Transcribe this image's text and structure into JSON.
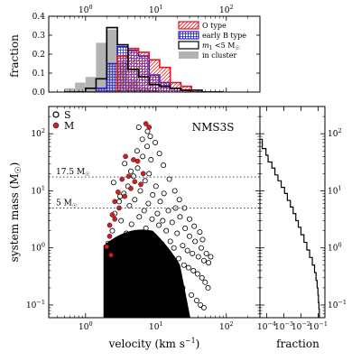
{
  "chart_data": [
    {
      "id": "hist",
      "type": "bar",
      "description_axis": "step histograms of velocity per population",
      "ylabel": "fraction",
      "xlabel_top": "",
      "xscale": "log",
      "xlim": [
        0.3,
        300
      ],
      "ylim": [
        0,
        0.4
      ],
      "x_ticks": [
        {
          "v": 1,
          "label": "10^0"
        },
        {
          "v": 10,
          "label": "10^1"
        },
        {
          "v": 100,
          "label": "10^2"
        }
      ],
      "y_ticks": [
        {
          "v": 0.0,
          "label": "0.0"
        },
        {
          "v": 0.1,
          "label": "0.1"
        },
        {
          "v": 0.2,
          "label": "0.2"
        },
        {
          "v": 0.3,
          "label": "0.3"
        },
        {
          "v": 0.4,
          "label": "0.4"
        }
      ],
      "bin_edges": [
        0.5,
        0.71,
        1.0,
        1.41,
        2.0,
        2.83,
        4.0,
        5.66,
        8.0,
        11.3,
        16.0,
        22.6,
        32.0,
        45.3,
        64.0,
        90.5
      ],
      "series": [
        {
          "name": "in cluster",
          "style": "filled",
          "color": "#b3b3b3",
          "values": [
            0.02,
            0.05,
            0.08,
            0.26,
            0.33,
            0.16,
            0.06,
            0.02,
            0.01,
            0.0,
            0.0,
            0.0,
            0.0,
            0.0,
            0.0
          ]
        },
        {
          "name": "early B type",
          "style": "hatch-cross",
          "color": "#1f1fd6",
          "values": [
            0.0,
            0.0,
            0.0,
            0.02,
            0.15,
            0.24,
            0.22,
            0.19,
            0.09,
            0.05,
            0.02,
            0.01,
            0.0,
            0.0,
            0.0
          ]
        },
        {
          "name": "O type",
          "style": "hatch-diag",
          "color": "#e8141b",
          "values": [
            0.0,
            0.0,
            0.0,
            0.0,
            0.0,
            0.19,
            0.23,
            0.21,
            0.17,
            0.13,
            0.05,
            0.03,
            0.0,
            0.0,
            0.0
          ]
        },
        {
          "name": "m1 <5 M☉",
          "style": "step",
          "color": "#000000",
          "values": [
            0.0,
            0.0,
            0.02,
            0.07,
            0.34,
            0.25,
            0.12,
            0.08,
            0.04,
            0.03,
            0.02,
            0.01,
            0.01,
            0.0,
            0.0
          ]
        }
      ],
      "legend": [
        {
          "label": "O type",
          "style": "hatch-diag",
          "color": "#e8141b"
        },
        {
          "label": "early B type",
          "style": "hatch-cross",
          "color": "#1f1fd6"
        },
        {
          "label": "m",
          "sub": "1",
          "rest": " <5 M",
          "sun": "☉",
          "style": "open",
          "color": "#000000"
        },
        {
          "label": "in cluster",
          "style": "filled",
          "color": "#b3b3b3"
        }
      ],
      "legend_position": "top-right"
    },
    {
      "id": "scatter",
      "type": "scatter",
      "xlabel": "velocity (km s",
      "xlabel_sup": "−1",
      "xlabel_close": ")",
      "ylabel": "system mass (M",
      "ylabel_sun": "☉",
      "ylabel_close": ")",
      "xscale": "log",
      "yscale": "log",
      "xlim": [
        0.3,
        300
      ],
      "ylim": [
        0.06,
        300
      ],
      "x_ticks": [
        {
          "v": 1,
          "label": "10^0"
        },
        {
          "v": 10,
          "label": "10^1"
        },
        {
          "v": 100,
          "label": "10^2"
        }
      ],
      "y_ticks": [
        {
          "v": 0.1,
          "label": "10^-1"
        },
        {
          "v": 1,
          "label": "10^0"
        },
        {
          "v": 10,
          "label": "10^1"
        },
        {
          "v": 100,
          "label": "10^2"
        }
      ],
      "panel_label": "NMS3S",
      "legend": [
        {
          "label": "S",
          "marker": "open-circle",
          "color": "#000000"
        },
        {
          "label": "M",
          "marker": "filled-circle",
          "color": "#d11f1f"
        }
      ],
      "hlines": [
        {
          "y": 17.5,
          "label": "17.5 M",
          "sun": "☉"
        },
        {
          "y": 5,
          "label": "5 M",
          "sun": "☉"
        }
      ],
      "dense_region": {
        "x_range": [
          1.8,
          22
        ],
        "y_range": [
          0.06,
          0.5
        ],
        "series": "S"
      },
      "series": [
        {
          "name": "S",
          "marker": "open-circle",
          "color": "#000000",
          "points": [
            [
              2.1,
              1.2
            ],
            [
              2.4,
              2.0
            ],
            [
              2.6,
              4.0
            ],
            [
              2.2,
              0.8
            ],
            [
              3.0,
              6.5
            ],
            [
              3.2,
              3.0
            ],
            [
              3.5,
              9.0
            ],
            [
              3.8,
              1.8
            ],
            [
              4.0,
              12.0
            ],
            [
              4.2,
              5.5
            ],
            [
              4.5,
              2.6
            ],
            [
              4.8,
              18.0
            ],
            [
              5.0,
              7.0
            ],
            [
              5.2,
              1.4
            ],
            [
              5.5,
              25.0
            ],
            [
              5.8,
              3.5
            ],
            [
              6.0,
              10.0
            ],
            [
              6.2,
              0.9
            ],
            [
              6.5,
              40.0
            ],
            [
              6.8,
              4.5
            ],
            [
              7.0,
              15.0
            ],
            [
              7.2,
              2.2
            ],
            [
              7.5,
              60.0
            ],
            [
              7.8,
              6.0
            ],
            [
              8.0,
              20.0
            ],
            [
              8.2,
              1.1
            ],
            [
              8.5,
              35.0
            ],
            [
              8.8,
              3.2
            ],
            [
              9.0,
              8.5
            ],
            [
              9.5,
              1.6
            ],
            [
              10.0,
              12.0
            ],
            [
              10.5,
              4.0
            ],
            [
              11.0,
              2.5
            ],
            [
              11.5,
              6.5
            ],
            [
              12.0,
              1.2
            ],
            [
              12.5,
              3.0
            ],
            [
              13.0,
              9.0
            ],
            [
              14.0,
              2.0
            ],
            [
              15.0,
              4.5
            ],
            [
              16.0,
              1.3
            ],
            [
              17.0,
              2.8
            ],
            [
              18.0,
              1.0
            ],
            [
              19.0,
              5.0
            ],
            [
              20.0,
              1.8
            ],
            [
              22.0,
              3.5
            ],
            [
              24.0,
              1.1
            ],
            [
              26.0,
              2.2
            ],
            [
              28.0,
              0.9
            ],
            [
              30.0,
              1.6
            ],
            [
              33.0,
              0.8
            ],
            [
              36.0,
              1.3
            ],
            [
              40.0,
              0.7
            ],
            [
              44.0,
              1.0
            ],
            [
              48.0,
              0.6
            ],
            [
              52.0,
              0.8
            ],
            [
              56.0,
              0.55
            ],
            [
              60.0,
              0.7
            ],
            [
              2.3,
              0.6
            ],
            [
              2.8,
              0.55
            ],
            [
              3.3,
              0.7
            ],
            [
              4.6,
              0.65
            ],
            [
              6.6,
              0.6
            ],
            [
              9.2,
              0.7
            ],
            [
              13.5,
              0.6
            ],
            [
              17.5,
              0.55
            ],
            [
              21.0,
              0.65
            ],
            [
              25.0,
              0.5
            ],
            [
              29.0,
              0.45
            ],
            [
              34.0,
              0.4
            ],
            [
              39.0,
              0.35
            ],
            [
              45.0,
              0.3
            ],
            [
              50.0,
              0.25
            ],
            [
              55.0,
              0.2
            ],
            [
              3.6,
              30.0
            ],
            [
              5.4,
              50.0
            ],
            [
              6.4,
              80.0
            ],
            [
              7.6,
              110.0
            ],
            [
              9.8,
              70.0
            ],
            [
              4.4,
              22.0
            ],
            [
              11.2,
              45.0
            ],
            [
              2.5,
              14.0
            ],
            [
              3.1,
              8.0
            ],
            [
              12.8,
              28.0
            ],
            [
              15.5,
              16.0
            ],
            [
              18.5,
              10.0
            ],
            [
              21.5,
              7.0
            ],
            [
              25.5,
              5.0
            ],
            [
              30.0,
              3.2
            ],
            [
              35.0,
              2.4
            ],
            [
              42.0,
              1.9
            ],
            [
              46.0,
              1.4
            ],
            [
              5.7,
              130.0
            ],
            [
              8.3,
              90.0
            ],
            [
              2.7,
              0.35
            ],
            [
              3.9,
              0.3
            ],
            [
              24.0,
              0.2
            ],
            [
              32.0,
              0.15
            ],
            [
              38.0,
              0.12
            ],
            [
              43.0,
              0.1
            ],
            [
              48.0,
              0.09
            ]
          ]
        },
        {
          "name": "M",
          "marker": "filled-circle",
          "color": "#d11f1f",
          "points": [
            [
              7.2,
              150.0
            ],
            [
              8.0,
              130.0
            ],
            [
              3.7,
              40.0
            ],
            [
              4.8,
              35.0
            ],
            [
              5.5,
              33.0
            ],
            [
              6.6,
              20.0
            ],
            [
              4.1,
              18.0
            ],
            [
              3.3,
              16.0
            ],
            [
              5.0,
              14.5
            ],
            [
              6.1,
              13.0
            ],
            [
              4.4,
              11.0
            ],
            [
              2.9,
              9.5
            ],
            [
              3.6,
              8.0
            ],
            [
              2.6,
              6.5
            ],
            [
              3.0,
              5.0
            ],
            [
              2.4,
              3.8
            ],
            [
              2.6,
              3.2
            ],
            [
              2.2,
              2.5
            ],
            [
              2.2,
              1.6
            ],
            [
              2.0,
              1.05
            ],
            [
              2.3,
              0.75
            ]
          ]
        }
      ]
    },
    {
      "id": "cdf",
      "type": "line",
      "xlabel": "fraction",
      "xscale": "log",
      "yscale": "log",
      "xlim": [
        4e-05,
        0.25
      ],
      "ylim": [
        0.06,
        300
      ],
      "x_ticks": [
        {
          "v": 0.0001,
          "label": "10^-4"
        },
        {
          "v": 0.001,
          "label": "10^-3"
        },
        {
          "v": 0.01,
          "label": "10^-2"
        },
        {
          "v": 0.1,
          "label": "10^-1"
        }
      ],
      "y_ticks": [
        {
          "v": 0.1,
          "label": "10^-1"
        },
        {
          "v": 1,
          "label": "10^0"
        },
        {
          "v": 10,
          "label": "10^1"
        },
        {
          "v": 100,
          "label": "10^2"
        }
      ],
      "step_points": [
        [
          4e-05,
          80
        ],
        [
          5.5e-05,
          80
        ],
        [
          5.5e-05,
          55
        ],
        [
          9e-05,
          55
        ],
        [
          9e-05,
          42
        ],
        [
          0.00012,
          42
        ],
        [
          0.00012,
          32
        ],
        [
          0.0002,
          32
        ],
        [
          0.0002,
          25
        ],
        [
          0.0003,
          25
        ],
        [
          0.0003,
          19
        ],
        [
          0.00045,
          19
        ],
        [
          0.00045,
          15
        ],
        [
          0.0007,
          15
        ],
        [
          0.0007,
          11.5
        ],
        [
          0.0011,
          11.5
        ],
        [
          0.0011,
          9
        ],
        [
          0.0016,
          9
        ],
        [
          0.0016,
          6.8
        ],
        [
          0.0024,
          6.8
        ],
        [
          0.0024,
          5.2
        ],
        [
          0.0035,
          5.2
        ],
        [
          0.0035,
          4.0
        ],
        [
          0.005,
          4.0
        ],
        [
          0.005,
          3.0
        ],
        [
          0.007,
          3.0
        ],
        [
          0.007,
          2.3
        ],
        [
          0.01,
          2.3
        ],
        [
          0.01,
          1.7
        ],
        [
          0.015,
          1.7
        ],
        [
          0.015,
          1.25
        ],
        [
          0.022,
          1.25
        ],
        [
          0.022,
          0.92
        ],
        [
          0.032,
          0.92
        ],
        [
          0.032,
          0.68
        ],
        [
          0.046,
          0.68
        ],
        [
          0.046,
          0.5
        ],
        [
          0.062,
          0.5
        ],
        [
          0.062,
          0.37
        ],
        [
          0.076,
          0.37
        ],
        [
          0.076,
          0.27
        ],
        [
          0.088,
          0.27
        ],
        [
          0.088,
          0.2
        ],
        [
          0.098,
          0.2
        ],
        [
          0.098,
          0.15
        ],
        [
          0.105,
          0.15
        ],
        [
          0.105,
          0.11
        ],
        [
          0.112,
          0.11
        ],
        [
          0.112,
          0.085
        ],
        [
          0.118,
          0.085
        ],
        [
          0.118,
          0.06
        ]
      ]
    }
  ]
}
